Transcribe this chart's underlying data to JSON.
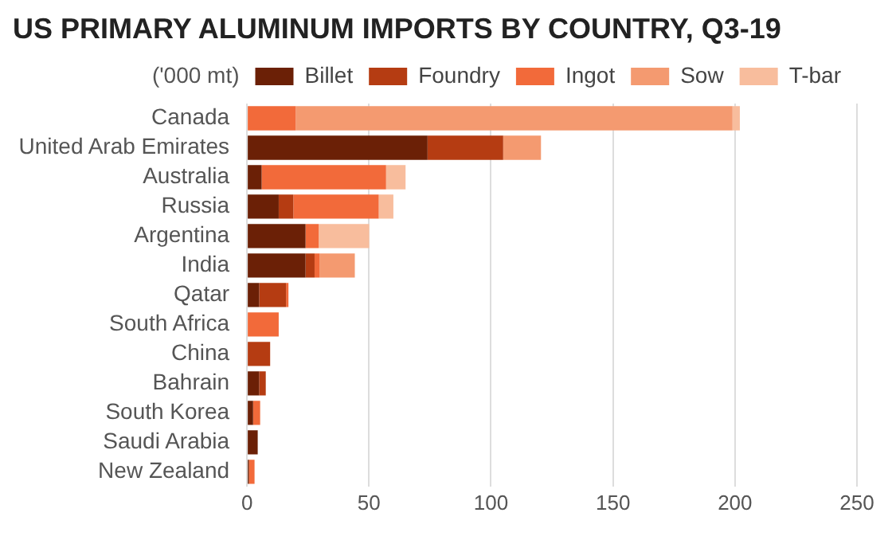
{
  "chart_data": {
    "type": "bar",
    "title": "US PRIMARY ALUMINUM IMPORTS BY COUNTRY, Q3-19",
    "legend_title": "('000 mt)",
    "categories": [
      "Canada",
      "United Arab Emirates",
      "Australia",
      "Russia",
      "Argentina",
      "India",
      "Qatar",
      "South Africa",
      "China",
      "Bahrain",
      "South Korea",
      "Saudi Arabia",
      "New Zealand"
    ],
    "orientation": "horizontal",
    "stacked": true,
    "series": [
      {
        "name": "Billet",
        "color": "#6b2006",
        "values": [
          null,
          74,
          6,
          13,
          24,
          24,
          5,
          null,
          null,
          5,
          2.5,
          4.4,
          0.8
        ]
      },
      {
        "name": "Foundry",
        "color": "#b53c12",
        "values": [
          null,
          31,
          null,
          6,
          null,
          3.7,
          11,
          null,
          9.5,
          2.7,
          null,
          null,
          null
        ]
      },
      {
        "name": "Ingot",
        "color": "#f26a3a",
        "values": [
          20,
          null,
          51,
          35,
          5.4,
          2,
          1,
          13,
          null,
          null,
          2.9,
          null,
          2.3
        ]
      },
      {
        "name": "Sow",
        "color": "#f49a70",
        "values": [
          179,
          15.5,
          null,
          null,
          null,
          14.5,
          null,
          null,
          null,
          null,
          null,
          null,
          null
        ]
      },
      {
        "name": "T-bar",
        "color": "#f8bd9d",
        "values": [
          3,
          null,
          8,
          6,
          20.7,
          null,
          null,
          null,
          null,
          null,
          null,
          null,
          null
        ]
      }
    ],
    "xlim": [
      0,
      250
    ],
    "xticks": [
      0,
      50,
      100,
      150,
      200,
      250
    ],
    "grid": "x",
    "legend": "top right"
  }
}
